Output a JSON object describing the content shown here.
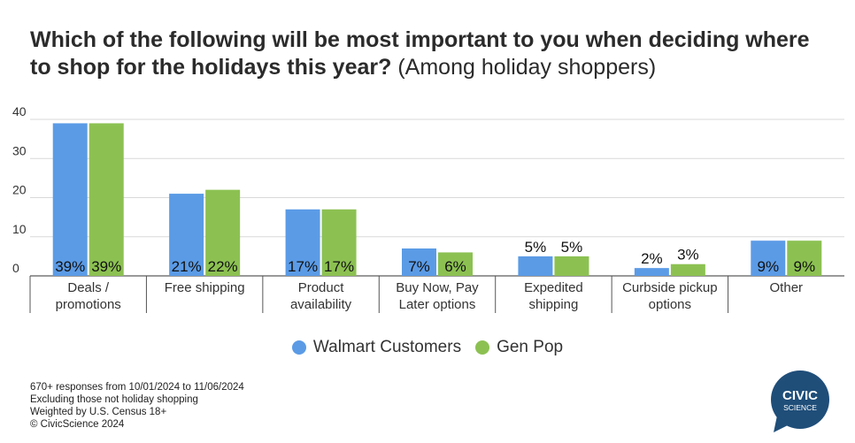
{
  "title": {
    "main": "Which of the following will be most important to you when deciding where to shop for the holidays this year?",
    "sub": "(Among holiday shoppers)"
  },
  "chart_data": {
    "type": "bar",
    "categories": [
      [
        "Deals /",
        "promotions"
      ],
      [
        "Free shipping"
      ],
      [
        "Product",
        "availability"
      ],
      [
        "Buy Now, Pay",
        "Later options"
      ],
      [
        "Expedited",
        "shipping"
      ],
      [
        "Curbside pickup",
        "options"
      ],
      [
        "Other"
      ]
    ],
    "series": [
      {
        "name": "Walmart Customers",
        "color": "#5b9be6",
        "values": [
          39,
          21,
          17,
          7,
          5,
          2,
          9
        ],
        "labels": [
          "39%",
          "21%",
          "17%",
          "7%",
          "5%",
          "2%",
          "9%"
        ]
      },
      {
        "name": "Gen Pop",
        "color": "#8cc152",
        "values": [
          39,
          22,
          17,
          6,
          5,
          3,
          9
        ],
        "labels": [
          "39%",
          "22%",
          "17%",
          "6%",
          "5%",
          "3%",
          "9%"
        ]
      }
    ],
    "yticks": [
      0,
      10,
      20,
      30,
      40
    ],
    "ylim": [
      0,
      40
    ],
    "grid": true,
    "legend_position": "bottom"
  },
  "footer": [
    "670+ responses from 10/01/2024 to 11/06/2024",
    "Excluding those not holiday shopping",
    "Weighted by U.S. Census 18+",
    "© CivicScience 2024"
  ],
  "logo": {
    "line1": "CIVIC",
    "line2": "SCIENCE",
    "color": "#1f4e79"
  }
}
